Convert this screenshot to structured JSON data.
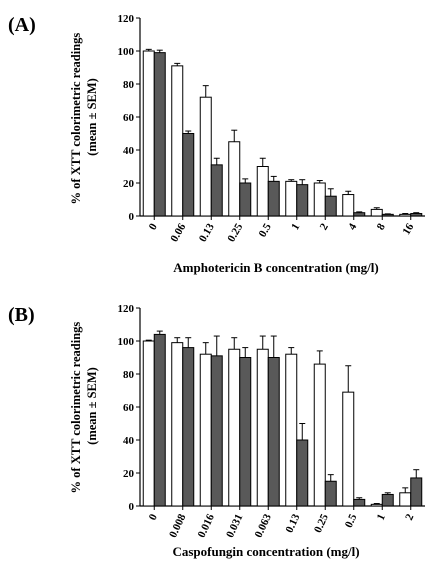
{
  "chart_data": [
    {
      "type": "bar",
      "panel_label": "(A)",
      "xlabel": "Amphotericin B concentration (mg/l)",
      "ylabel_line1": "% of XTT colorimetric readings",
      "ylabel_line2": "(mean ± SEM)",
      "ylim": [
        0,
        120
      ],
      "yticks": [
        "0",
        "20",
        "40",
        "60",
        "80",
        "100",
        "120"
      ],
      "categories": [
        "0",
        "0.06",
        "0.13",
        "0.25",
        "0.5",
        "1",
        "2",
        "4",
        "8",
        "16"
      ],
      "series": [
        {
          "fill": "#ffffff",
          "values": [
            100,
            91,
            72,
            45,
            30,
            21,
            20,
            13,
            4,
            1
          ],
          "sem": [
            1,
            1.5,
            7,
            7,
            5,
            1,
            1.5,
            2,
            1,
            0.5
          ]
        },
        {
          "fill": "#595959",
          "values": [
            99,
            50,
            31,
            20,
            21,
            19,
            12,
            2,
            1,
            1.5
          ],
          "sem": [
            1.5,
            1.5,
            4,
            2.5,
            3,
            3,
            4.5,
            0.5,
            0.3,
            0.5
          ]
        }
      ]
    },
    {
      "type": "bar",
      "panel_label": "(B)",
      "xlabel": "Caspofungin concentration (mg/l)",
      "ylabel_line1": "% of XTT colorimetric readings",
      "ylabel_line2": "(mean ± SEM)",
      "ylim": [
        0,
        120
      ],
      "yticks": [
        "0",
        "20",
        "40",
        "60",
        "80",
        "100",
        "120"
      ],
      "categories": [
        "0",
        "0.008",
        "0.016",
        "0.031",
        "0.063",
        "0.13",
        "0.25",
        "0.5",
        "1",
        "2"
      ],
      "series": [
        {
          "fill": "#ffffff",
          "values": [
            100,
            99,
            92,
            95,
            95,
            92,
            86,
            69,
            1,
            8
          ],
          "sem": [
            0.5,
            3,
            7,
            7,
            8,
            4,
            8,
            16,
            0.5,
            3
          ]
        },
        {
          "fill": "#595959",
          "values": [
            104,
            96,
            91,
            90,
            90,
            40,
            15,
            4,
            7,
            17
          ],
          "sem": [
            2,
            6,
            12,
            6,
            13,
            10,
            4,
            1,
            1,
            5
          ]
        }
      ]
    }
  ]
}
